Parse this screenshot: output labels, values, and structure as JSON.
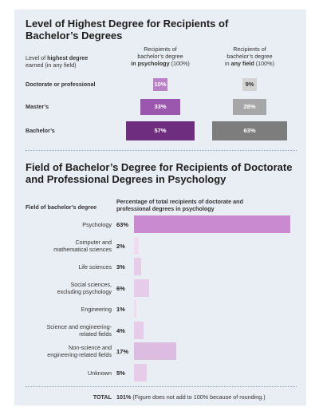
{
  "chart_data": [
    {
      "type": "bar",
      "title": "Level of Highest Degree for Recipients of Bachelor’s Degrees",
      "header_label_1": "Level of ",
      "header_label_bold": "highest degree",
      "header_label_2": "earned (in any field)",
      "col1_line1": "Recipients of",
      "col1_line2": "bachelor’s degree",
      "col1_line3_bold": "in psychology",
      "col1_line3_rest": " (100%)",
      "col2_line1": "Recipients of",
      "col2_line2": "bachelor’s degree",
      "col2_line3_pre": "in ",
      "col2_line3_bold": "any field",
      "col2_line3_rest": " (100%)",
      "categories": [
        "Doctorate or professional",
        "Master’s",
        "Bachelor’s"
      ],
      "series": [
        {
          "name": "in psychology",
          "values": [
            10,
            33,
            57
          ],
          "labels": [
            "10%",
            "33%",
            "57%"
          ],
          "colors": [
            "#b981c6",
            "#9a57ad",
            "#6e2d7e"
          ]
        },
        {
          "name": "in any field",
          "values": [
            9,
            28,
            63
          ],
          "labels": [
            "9%",
            "28%",
            "63%"
          ],
          "colors": [
            "#d3d3d3",
            "#a7a7a7",
            "#7d7d7d"
          ]
        }
      ]
    },
    {
      "type": "bar",
      "title": "Field of Bachelor’s Degree for Recipients of Doctorate and Professional Degrees in Psychology",
      "xlabel": "Field of bachelor’s degree",
      "ylabel_line1": "Percentage of total recipients of doctorate and",
      "ylabel_line2": "professional degrees in psychology",
      "categories": [
        [
          "Psychology"
        ],
        [
          "Computer and",
          "mathematical sciences"
        ],
        [
          "Life sciences"
        ],
        [
          "Social sciences,",
          "excluding psychology"
        ],
        [
          "Engineering"
        ],
        [
          "Science and engineering-",
          "related fields"
        ],
        [
          "Non-science and",
          "engineering-related fields"
        ],
        [
          "Unknown"
        ]
      ],
      "values": [
        63,
        2,
        3,
        6,
        1,
        4,
        17,
        5
      ],
      "labels": [
        "63%",
        "2%",
        "3%",
        "6%",
        "1%",
        "4%",
        "17%",
        "5%"
      ],
      "colors": [
        "#c98ad0",
        "#efdcf0",
        "#e7cce9",
        "#e7cce9",
        "#efdcf0",
        "#e7cce9",
        "#dcbde1",
        "#e7cce9"
      ],
      "total_label": "TOTAL",
      "total_value": "101%",
      "total_note": "(Figure does not add to 100% because of rounding.)"
    }
  ]
}
